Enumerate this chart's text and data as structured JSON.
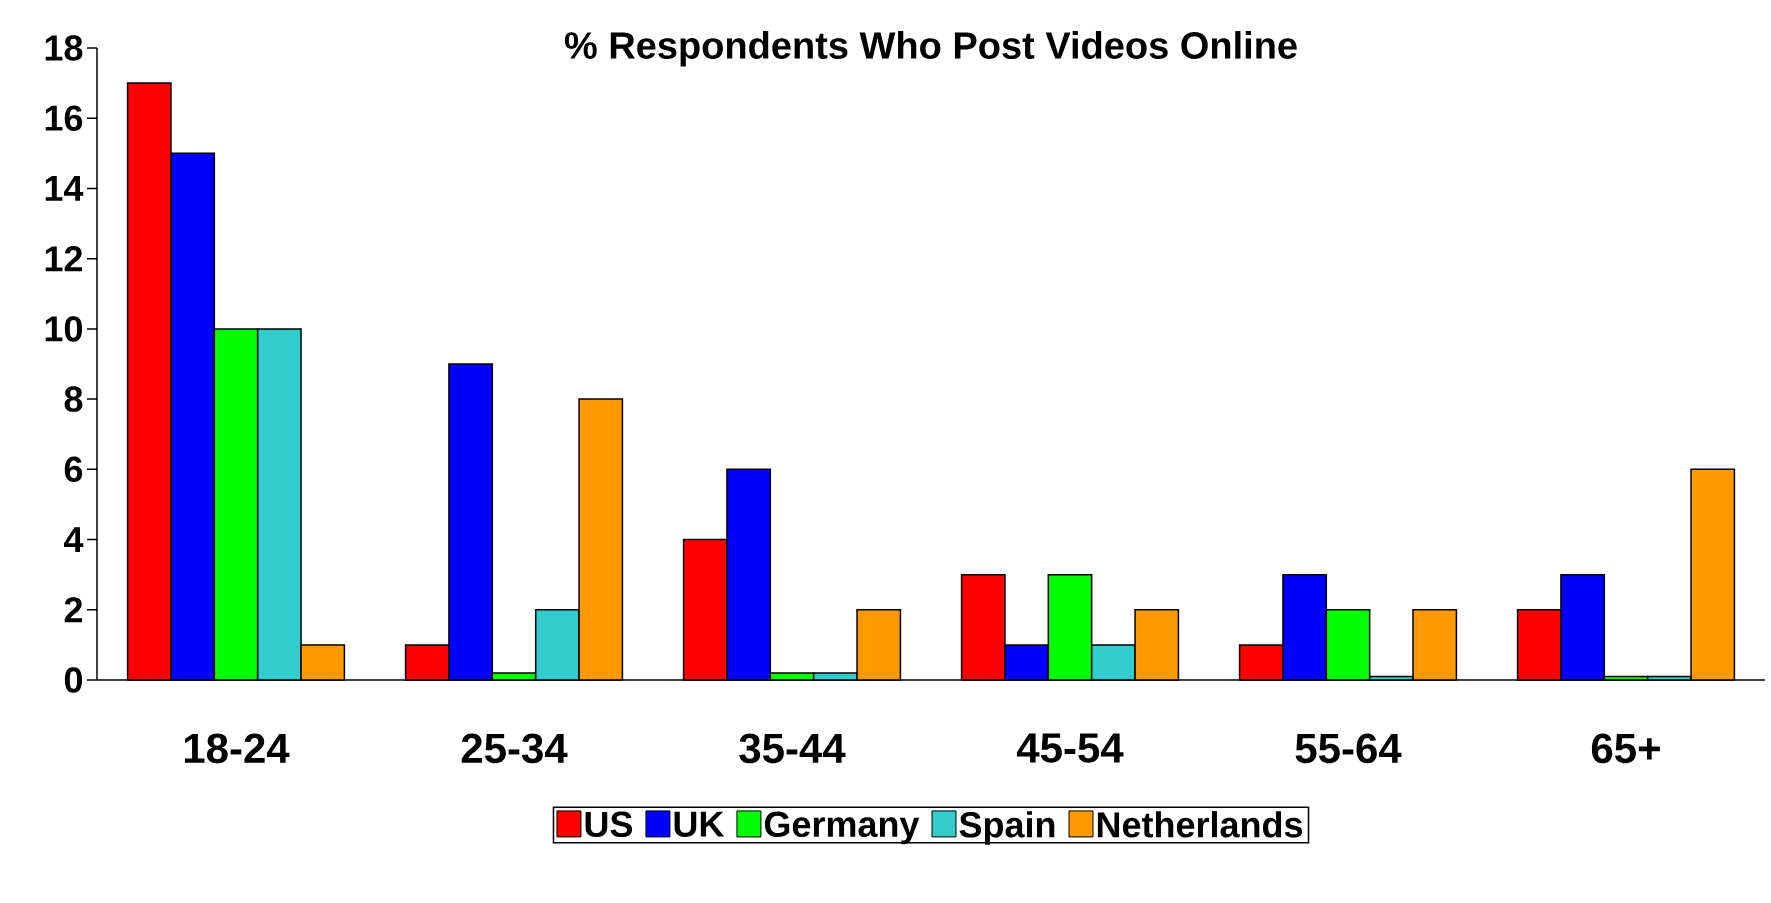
{
  "chart_data": {
    "type": "bar",
    "title": "% Respondents Who Post Videos Online",
    "categories": [
      "18-24",
      "25-34",
      "35-44",
      "45-54",
      "55-64",
      "65+"
    ],
    "series": [
      {
        "name": "US",
        "color": "#ff0000",
        "values": [
          17,
          1,
          4,
          3,
          1,
          2
        ]
      },
      {
        "name": "UK",
        "color": "#0000ff",
        "values": [
          15,
          9,
          6,
          1,
          3,
          3
        ]
      },
      {
        "name": "Germany",
        "color": "#00ff00",
        "values": [
          10,
          0.2,
          0.2,
          3,
          2,
          0.1
        ]
      },
      {
        "name": "Spain",
        "color": "#33cccc",
        "values": [
          10,
          2,
          0.2,
          1,
          0.1,
          0.1
        ]
      },
      {
        "name": "Netherlands",
        "color": "#ff9900",
        "values": [
          1,
          8,
          2,
          2,
          2,
          6
        ]
      }
    ],
    "ylim": [
      0,
      18
    ],
    "yticks": [
      0,
      2,
      4,
      6,
      8,
      10,
      12,
      14,
      16,
      18
    ],
    "legend": "bottom"
  }
}
